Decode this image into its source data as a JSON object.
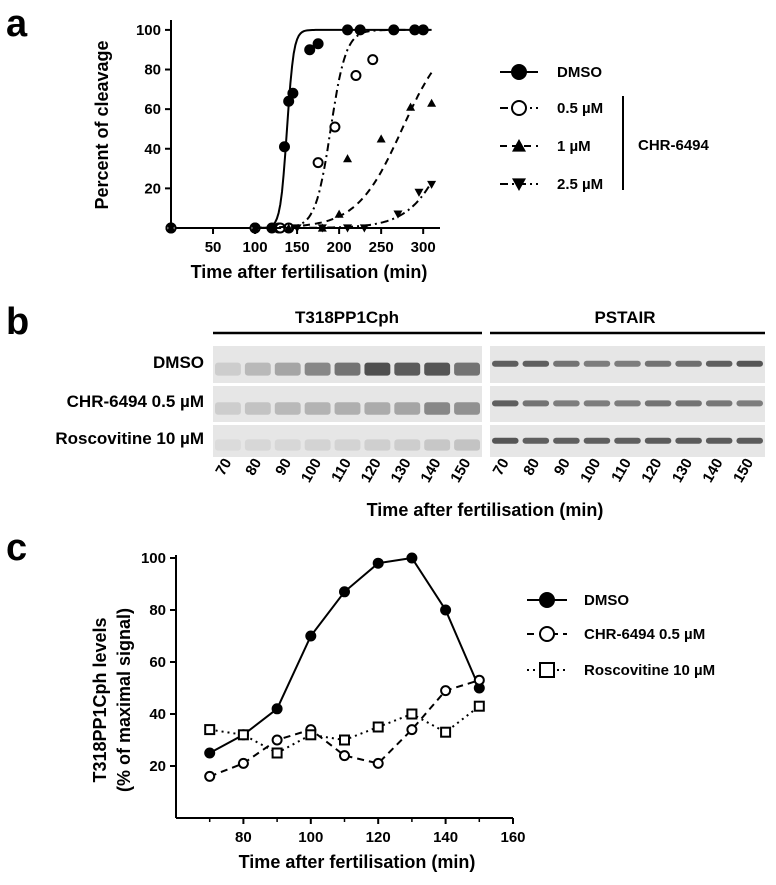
{
  "panels": {
    "a": "a",
    "b": "b",
    "c": "c"
  },
  "chart_data": [
    {
      "type": "scatter",
      "panel": "a",
      "xlabel": "Time after fertilisation (min)",
      "ylabel": "Percent of cleavage",
      "xlim": [
        0,
        320
      ],
      "ylim": [
        0,
        105
      ],
      "xticks": [
        50,
        100,
        150,
        200,
        250,
        300
      ],
      "yticks": [
        20,
        40,
        60,
        80,
        100
      ],
      "legend_placement": "right",
      "legend_group": "CHR-6494",
      "series": [
        {
          "name": "DMSO",
          "marker": "circle-filled",
          "line": "solid",
          "x": [
            0,
            100,
            120,
            128,
            135,
            140,
            145,
            165,
            175,
            210,
            225,
            265,
            290,
            300
          ],
          "y": [
            0,
            0,
            0,
            0,
            41,
            64,
            68,
            90,
            93,
            100,
            100,
            100,
            100,
            100
          ],
          "fit_mid": 138,
          "fit_slope": 0.25
        },
        {
          "name": "0.5 µM",
          "marker": "circle-open",
          "line": "dashdot",
          "x": [
            0,
            100,
            130,
            140,
            175,
            195,
            220,
            240
          ],
          "y": [
            0,
            0,
            0,
            0,
            33,
            51,
            77,
            85
          ],
          "fit_mid": 190,
          "fit_slope": 0.11
        },
        {
          "name": "1 µM",
          "marker": "triangle-up",
          "line": "dashed",
          "x": [
            0,
            100,
            140,
            180,
            200,
            210,
            250,
            285,
            310
          ],
          "y": [
            0,
            0,
            0,
            0,
            7,
            35,
            45,
            61,
            63
          ],
          "fit_mid": 275,
          "fit_slope": 0.037
        },
        {
          "name": "2.5 µM",
          "marker": "triangle-down",
          "line": "dashdot",
          "x": [
            0,
            100,
            150,
            180,
            210,
            230,
            270,
            295,
            310
          ],
          "y": [
            0,
            0,
            0,
            0,
            0,
            0,
            7,
            18,
            22
          ],
          "fit_mid": 340,
          "fit_slope": 0.04
        }
      ]
    },
    {
      "type": "line",
      "panel": "c",
      "xlabel": "Time after fertilisation (min)",
      "ylabel": "T318PP1Cph levels",
      "ylabel2": "(% of maximal  signal)",
      "xlim": [
        60,
        160
      ],
      "ylim": [
        0,
        105
      ],
      "xticks": [
        80,
        100,
        120,
        140,
        160
      ],
      "yticks": [
        20,
        40,
        60,
        80,
        100
      ],
      "legend_placement": "right",
      "x": [
        70,
        80,
        90,
        100,
        110,
        120,
        130,
        140,
        150
      ],
      "series": [
        {
          "name": "DMSO",
          "marker": "circle-filled",
          "line": "solid",
          "values": [
            25,
            32,
            42,
            70,
            87,
            98,
            100,
            80,
            50
          ]
        },
        {
          "name": "CHR-6494 0.5 µM",
          "marker": "circle-open",
          "line": "dashed",
          "values": [
            16,
            21,
            30,
            34,
            24,
            21,
            34,
            49,
            53
          ]
        },
        {
          "name": "Roscovitine 10 µM",
          "marker": "square-open",
          "line": "dotted",
          "values": [
            34,
            32,
            25,
            32,
            30,
            35,
            40,
            33,
            43
          ]
        }
      ]
    }
  ],
  "blot": {
    "group_left": "T318PP1Cph",
    "group_right": "PSTAIR",
    "rows": [
      "DMSO",
      "CHR-6494 0.5 µM",
      "Roscovitine 10 µM"
    ],
    "lanes": [
      "70",
      "80",
      "90",
      "100",
      "110",
      "120",
      "130",
      "140",
      "150"
    ],
    "xlabel": "Time after fertilisation (min)",
    "intensity_left": [
      [
        0.15,
        0.25,
        0.35,
        0.5,
        0.6,
        0.78,
        0.72,
        0.75,
        0.6
      ],
      [
        0.15,
        0.2,
        0.25,
        0.28,
        0.3,
        0.32,
        0.35,
        0.5,
        0.45
      ],
      [
        0.08,
        0.1,
        0.1,
        0.12,
        0.12,
        0.14,
        0.15,
        0.18,
        0.2
      ]
    ],
    "intensity_right": [
      [
        0.7,
        0.7,
        0.6,
        0.55,
        0.55,
        0.6,
        0.62,
        0.7,
        0.75
      ],
      [
        0.7,
        0.6,
        0.55,
        0.55,
        0.55,
        0.6,
        0.6,
        0.58,
        0.55
      ],
      [
        0.75,
        0.7,
        0.7,
        0.7,
        0.7,
        0.72,
        0.72,
        0.72,
        0.72
      ]
    ]
  }
}
